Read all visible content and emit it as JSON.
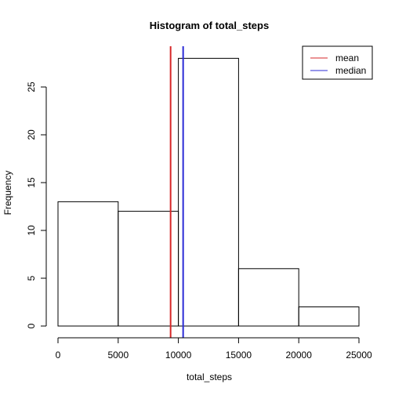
{
  "chart_data": {
    "type": "bar",
    "title": "Histogram of total_steps",
    "xlabel": "total_steps",
    "ylabel": "Frequency",
    "bins": [
      {
        "start": 0,
        "end": 5000,
        "count": 13
      },
      {
        "start": 5000,
        "end": 10000,
        "count": 12
      },
      {
        "start": 10000,
        "end": 15000,
        "count": 28
      },
      {
        "start": 15000,
        "end": 20000,
        "count": 6
      },
      {
        "start": 20000,
        "end": 25000,
        "count": 2
      }
    ],
    "xlim": [
      0,
      25000
    ],
    "ylim": [
      0,
      29
    ],
    "xticks": [
      0,
      5000,
      10000,
      15000,
      20000,
      25000
    ],
    "yticks": [
      0,
      5,
      10,
      15,
      20,
      25
    ],
    "reference_lines": [
      {
        "name": "mean",
        "value": 9354,
        "color": "#d62728"
      },
      {
        "name": "median",
        "value": 10395,
        "color": "#2b2bd6"
      }
    ],
    "legend": {
      "position": "top-right",
      "entries": [
        {
          "label": "mean",
          "color": "#d62728"
        },
        {
          "label": "median",
          "color": "#2b2bd6"
        }
      ]
    },
    "grid": false
  }
}
